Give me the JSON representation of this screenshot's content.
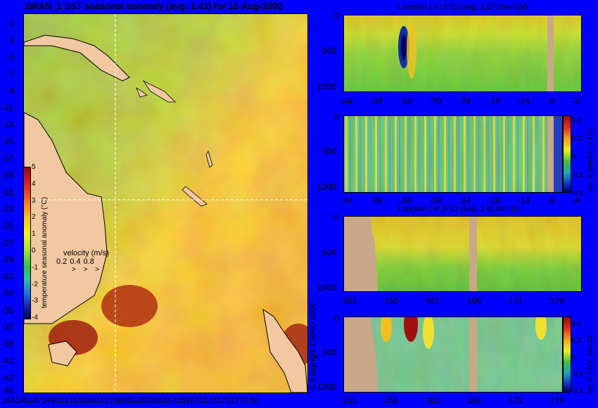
{
  "chart_data": [
    {
      "type": "heatmap",
      "title": "BRAN_1  SST seasonal anomaly  (avg: 1.43)  for 11-Aug-2002",
      "y_ticks": [
        "-1",
        "-3",
        "-5",
        "-7",
        "-9",
        "-11",
        "-13",
        "-15",
        "-17",
        "-19",
        "-21",
        "-23",
        "-25",
        "-27",
        "-29",
        "-31",
        "-33",
        "-35",
        "-37",
        "-39",
        "-41",
        "-43",
        "-45"
      ],
      "x_ticks": [
        "143",
        "145",
        "147",
        "149",
        "151",
        "153",
        "155",
        "157",
        "159",
        "161",
        "163",
        "165",
        "167",
        "169",
        "171",
        "173",
        "175",
        "177",
        "179"
      ],
      "xlim": [
        143,
        180
      ],
      "ylim": [
        -45,
        0
      ],
      "colorbar": {
        "label": "temperature seasonal anomaly (°C)",
        "ticks": [
          "5",
          "4",
          "3",
          "2",
          "1",
          "0",
          "-1",
          "-2",
          "-3",
          "-4"
        ],
        "range": [
          -4,
          5
        ]
      },
      "velocity_legend": {
        "title": "velocity (m/s)",
        "values": [
          "0.2",
          "0.4",
          "0.8"
        ]
      },
      "section_lines": {
        "lon": 155,
        "lat": -22
      },
      "copyright": "© Copyright CSIRO 2006"
    },
    {
      "type": "heatmap",
      "title": "t section (-4..5°C) (avg: 1.27) lon=155",
      "x_ticks": [
        "-44",
        "-39",
        "-34",
        "-29",
        "-24",
        "-19",
        "-14",
        "-9",
        "-4"
      ],
      "y_ticks": [
        "0",
        "500",
        "1000"
      ],
      "xlim": [
        -46,
        -0.5
      ],
      "ylim": [
        1050,
        0
      ]
    },
    {
      "type": "heatmap",
      "title": "",
      "x_ticks": [
        "-44",
        "-39",
        "-34",
        "-29",
        "-24",
        "-19",
        "-14",
        "-9",
        "-4"
      ],
      "y_ticks": [
        "0",
        "500",
        "1000"
      ],
      "xlim": [
        -46,
        -0.5
      ],
      "ylim": [
        1050,
        0
      ],
      "colorbar": {
        "label": "vel. E (m/s) lon=155",
        "ticks": [
          "0.4",
          "0.2",
          "0",
          "-0.2",
          "-0.4"
        ]
      }
    },
    {
      "type": "heatmap",
      "title": "t section (-4..5°C) (avg: 1.4) lat=-22",
      "x_ticks": [
        "151",
        "156",
        "161",
        "166",
        "171",
        "176"
      ],
      "y_ticks": [
        "0",
        "500",
        "1000"
      ],
      "xlim": [
        149.6,
        180
      ],
      "ylim": [
        1050,
        0
      ]
    },
    {
      "type": "heatmap",
      "title": "",
      "x_ticks": [
        "151",
        "156",
        "161",
        "166",
        "171",
        "176"
      ],
      "y_ticks": [
        "0",
        "500",
        "1000"
      ],
      "xlim": [
        149.6,
        180
      ],
      "ylim": [
        1050,
        0
      ],
      "colorbar": {
        "label": "vel. E (m/s) lat=-22",
        "ticks": [
          "0.4",
          "0.2",
          "0",
          "-0.2",
          "-0.4"
        ]
      }
    }
  ]
}
